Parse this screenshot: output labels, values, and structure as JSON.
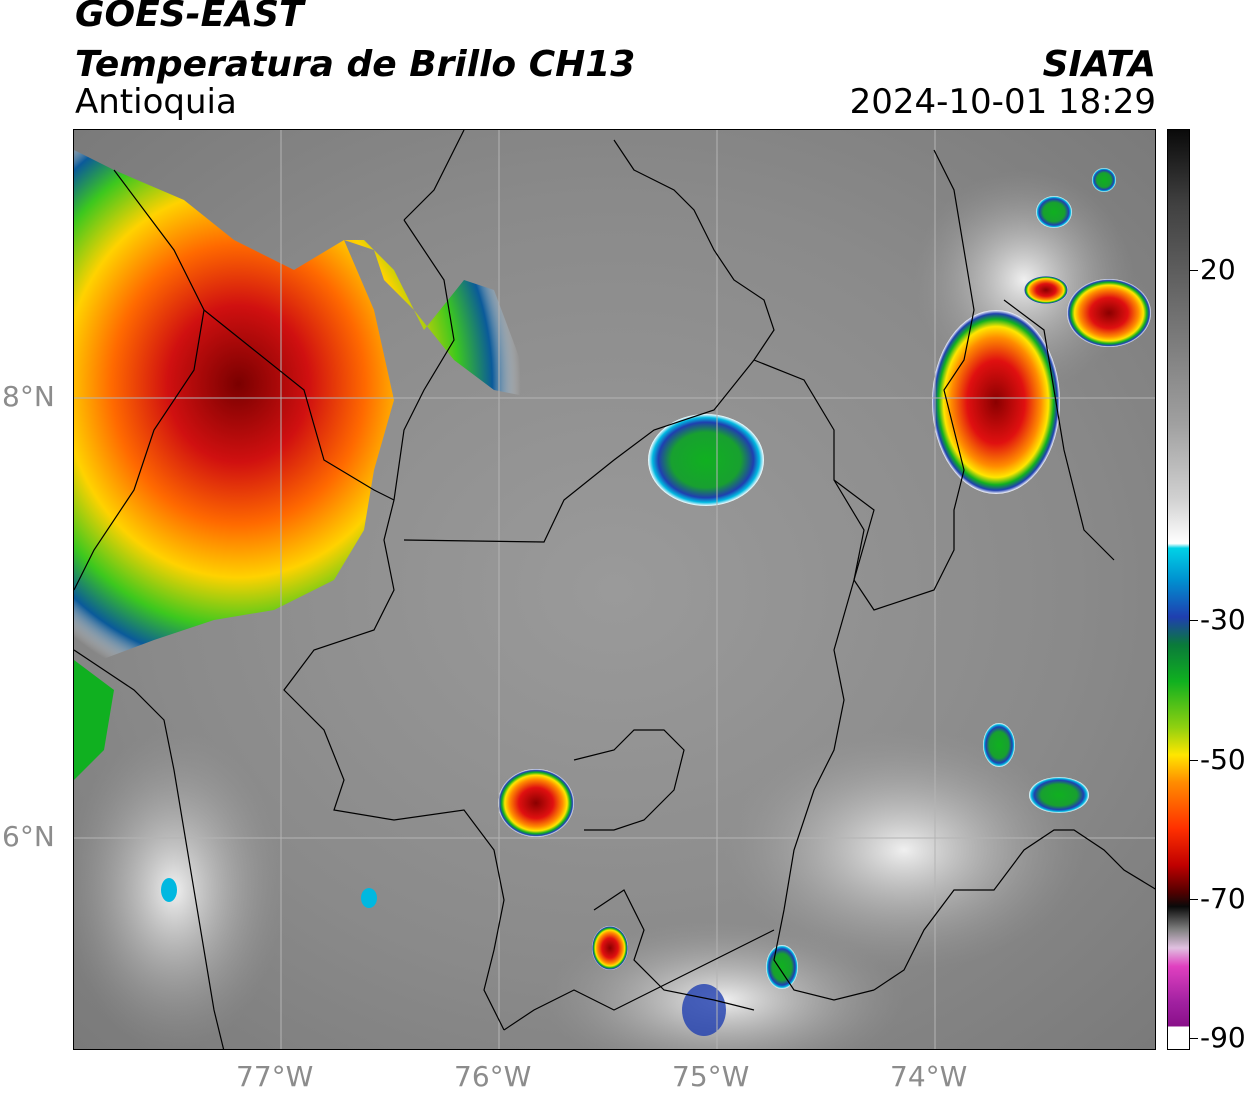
{
  "header": {
    "satellite": "GOES-EAST",
    "product": "Temperatura de Brillo CH13",
    "region": "Antioquia",
    "organization": "SIATA",
    "datetime": "2024-10-01 18:29"
  },
  "map": {
    "lon_labels": [
      "77°W",
      "76°W",
      "75°W",
      "74°W"
    ],
    "lat_labels": [
      "8°N",
      "6°N"
    ],
    "gridlines": true
  },
  "colorbar": {
    "labels": [
      "20",
      "-30",
      "-50",
      "-70",
      "-90"
    ],
    "colors": {
      "warm_gray": "#8a8a8a",
      "cloud_white": "#f2f2f2",
      "cyan": "#00d2e6",
      "blue": "#1f3fb0",
      "green": "#10b020",
      "yellow": "#ffe600",
      "orange": "#ff8c00",
      "red": "#e01010",
      "dark_red": "#7a0000",
      "black": "#0a0a0a",
      "magenta": "#e040c0",
      "purple": "#8a108a"
    }
  }
}
